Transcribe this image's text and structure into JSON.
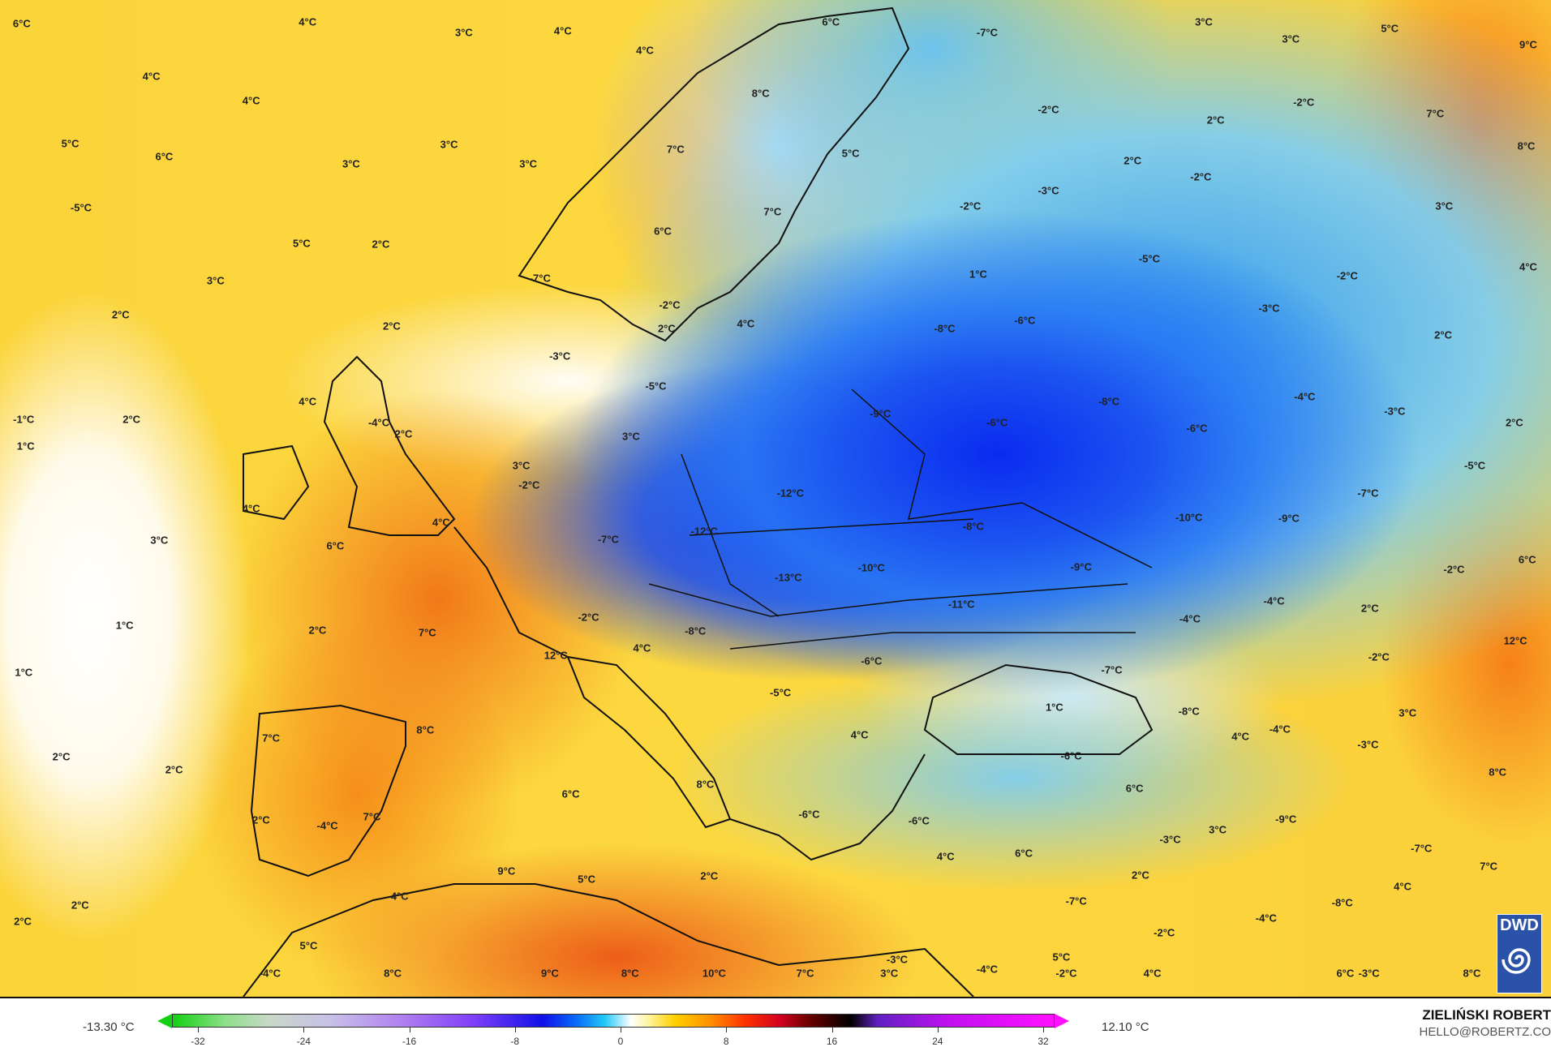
{
  "map": {
    "variable_unit": "°C",
    "temperature_labels": [
      "6°C",
      "4°C",
      "3°C",
      "4°C",
      "4°C",
      "6°C",
      "-7°C",
      "3°C",
      "3°C",
      "5°C",
      "9°C",
      "4°C",
      "4°C",
      "8°C",
      "-2°C",
      "2°C",
      "-2°C",
      "7°C",
      "5°C",
      "3°C",
      "6°C",
      "3°C",
      "3°C",
      "7°C",
      "5°C",
      "2°C",
      "-2°C",
      "8°C",
      "-5°C",
      "-3°C",
      "-2°C",
      "3°C",
      "7°C",
      "5°C",
      "2°C",
      "6°C",
      "-5°C",
      "1°C",
      "-2°C",
      "4°C",
      "3°C",
      "-7°C",
      "2°C",
      "-2°C",
      "-3°C",
      "-6°C",
      "2°C",
      "2°C",
      "4°C",
      "-8°C",
      "2°C",
      "-3°C",
      "-5°C",
      "-8°C",
      "-4°C",
      "4°C",
      "-3°C",
      "-1°C",
      "2°C",
      "-4°C",
      "2°C",
      "-9°C",
      "-6°C",
      "-6°C",
      "2°C",
      "1°C",
      "3°C",
      "3°C",
      "-5°C",
      "-2°C",
      "-12°C",
      "-7°C",
      "4°C",
      "4°C",
      "-10°C",
      "-9°C",
      "-8°C",
      "-12°C",
      "-7°C",
      "3°C",
      "6°C",
      "-2°C",
      "-10°C",
      "-9°C",
      "-13°C",
      "6°C",
      "-4°C",
      "2°C",
      "-11°C",
      "-2°C",
      "-4°C",
      "1°C",
      "2°C",
      "7°C",
      "-8°C",
      "4°C",
      "12°C",
      "12°C",
      "-6°C",
      "-2°C",
      "-7°C",
      "1°C",
      "-5°C",
      "1°C",
      "3°C",
      "-8°C",
      "8°C",
      "7°C",
      "4°C",
      "4°C",
      "-4°C",
      "-3°C",
      "-6°C",
      "2°C",
      "2°C",
      "8°C",
      "8°C",
      "6°C",
      "6°C",
      "2°C",
      "-4°C",
      "7°C",
      "-6°C",
      "-6°C",
      "-9°C",
      "3°C",
      "-3°C",
      "4°C",
      "6°C",
      "-7°C",
      "9°C",
      "5°C",
      "2°C",
      "2°C",
      "7°C",
      "4°C",
      "2°C",
      "-7°C",
      "-8°C",
      "4°C",
      "2°C",
      "-4°C",
      "-2°C",
      "5°C",
      "5°C",
      "-3°C",
      "-4°C",
      "8°C",
      "9°C",
      "8°C",
      "10°C",
      "7°C",
      "3°C",
      "-4°C",
      "-2°C",
      "4°C",
      "6°C",
      "-3°C",
      "8°C"
    ]
  },
  "logo": {
    "text": "DWD",
    "color": "#2a52a8"
  },
  "colorbar": {
    "min_value": "-13.30 °C",
    "max_value": "12.10 °C",
    "ticks": [
      "-32",
      "-24",
      "-16",
      "-8",
      "0",
      "8",
      "16",
      "24",
      "32"
    ],
    "range": [
      -32,
      32
    ],
    "colors": {
      "cold_end": "#14d014",
      "zero": "#ffffff",
      "warm_end": "#ff10ff"
    }
  },
  "credits": {
    "author": "ZIELIŃSKI ROBERT",
    "email": "HELLO@ROBERTZ.CO"
  }
}
